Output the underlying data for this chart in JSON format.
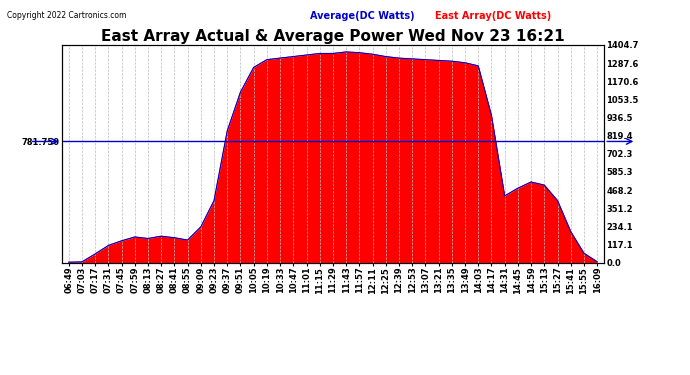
{
  "title": "East Array Actual & Average Power Wed Nov 23 16:21",
  "copyright": "Copyright 2022 Cartronics.com",
  "legend_avg": "Average(DC Watts)",
  "legend_east": "East Array(DC Watts)",
  "ymin": 0.0,
  "ymax": 1404.7,
  "yticks_right": [
    0.0,
    117.1,
    234.1,
    351.2,
    468.2,
    585.3,
    702.3,
    819.4,
    936.5,
    1053.5,
    1170.6,
    1287.6,
    1404.7
  ],
  "hline_value": 781.75,
  "hline_label": "781.750",
  "background_color": "#ffffff",
  "fill_color": "#ff0000",
  "avg_line_color": "#0000cc",
  "hline_color": "#0000cc",
  "grid_color": "#bbbbbb",
  "title_fontsize": 11,
  "tick_fontsize": 6,
  "legend_fontsize": 7,
  "xtick_labels": [
    "06:49",
    "07:03",
    "07:17",
    "07:31",
    "07:45",
    "07:59",
    "08:13",
    "08:27",
    "08:41",
    "08:55",
    "09:09",
    "09:23",
    "09:37",
    "09:51",
    "10:05",
    "10:19",
    "10:33",
    "10:47",
    "11:01",
    "11:15",
    "11:29",
    "11:43",
    "11:57",
    "12:11",
    "12:25",
    "12:39",
    "12:53",
    "13:07",
    "13:21",
    "13:35",
    "13:49",
    "14:03",
    "14:17",
    "14:31",
    "14:45",
    "14:59",
    "15:13",
    "15:27",
    "15:41",
    "15:55",
    "16:09"
  ],
  "east_array_values": [
    2,
    4,
    55,
    110,
    140,
    165,
    155,
    170,
    160,
    145,
    230,
    400,
    850,
    1100,
    1260,
    1310,
    1320,
    1330,
    1340,
    1350,
    1350,
    1360,
    1355,
    1345,
    1330,
    1320,
    1315,
    1310,
    1305,
    1300,
    1290,
    1270,
    950,
    430,
    480,
    520,
    500,
    400,
    200,
    60,
    5
  ],
  "avg_values": [
    2,
    4,
    55,
    110,
    140,
    165,
    155,
    170,
    160,
    145,
    230,
    400,
    850,
    1100,
    1260,
    1310,
    1320,
    1330,
    1340,
    1350,
    1350,
    1360,
    1355,
    1345,
    1330,
    1320,
    1315,
    1310,
    1305,
    1300,
    1290,
    1270,
    950,
    430,
    480,
    520,
    500,
    400,
    200,
    60,
    5
  ]
}
